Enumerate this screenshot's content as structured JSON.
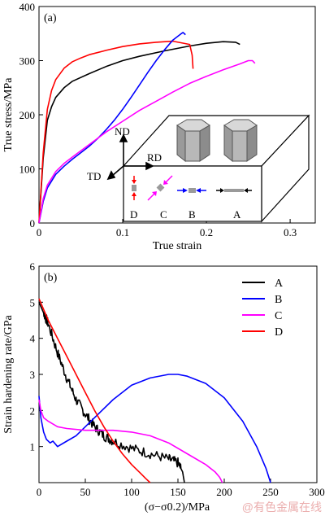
{
  "chart_data": [
    {
      "panel_label": "(a)",
      "type": "line",
      "xlabel": "True strain",
      "ylabel": "True stress/MPa",
      "xlim": [
        0,
        0.33
      ],
      "ylim": [
        0,
        400
      ],
      "xticks": [
        0,
        0.1,
        0.2,
        0.3
      ],
      "xtick_labels": [
        "0",
        "0.1",
        "0.2",
        "0.3"
      ],
      "yticks": [
        0,
        100,
        200,
        300,
        400
      ],
      "ytick_labels": [
        "0",
        "100",
        "200",
        "300",
        "400"
      ],
      "grid": false,
      "legend": "none",
      "series": [
        {
          "color": "#000000",
          "x": [
            0,
            0.005,
            0.01,
            0.015,
            0.02,
            0.03,
            0.04,
            0.06,
            0.08,
            0.1,
            0.12,
            0.15,
            0.18,
            0.2,
            0.22,
            0.235,
            0.24
          ],
          "y": [
            0,
            120,
            190,
            215,
            232,
            250,
            262,
            276,
            289,
            300,
            308,
            318,
            327,
            332,
            335,
            334,
            330
          ]
        },
        {
          "color": "#ff0000",
          "x": [
            0,
            0.005,
            0.01,
            0.015,
            0.02,
            0.03,
            0.04,
            0.05,
            0.06,
            0.08,
            0.1,
            0.12,
            0.14,
            0.16,
            0.17,
            0.18,
            0.183,
            0.184
          ],
          "y": [
            0,
            130,
            210,
            245,
            265,
            286,
            298,
            305,
            311,
            319,
            326,
            331,
            334,
            336,
            333,
            330,
            310,
            285
          ]
        },
        {
          "color": "#0000ff",
          "x": [
            0,
            0.005,
            0.01,
            0.02,
            0.03,
            0.04,
            0.05,
            0.06,
            0.07,
            0.08,
            0.09,
            0.1,
            0.11,
            0.12,
            0.13,
            0.14,
            0.15,
            0.16,
            0.17,
            0.172,
            0.175
          ],
          "y": [
            0,
            40,
            65,
            90,
            105,
            118,
            130,
            142,
            156,
            172,
            190,
            210,
            232,
            255,
            278,
            300,
            320,
            338,
            350,
            352,
            348
          ]
        },
        {
          "color": "#ff00ff",
          "x": [
            0,
            0.005,
            0.01,
            0.02,
            0.03,
            0.04,
            0.06,
            0.08,
            0.1,
            0.12,
            0.14,
            0.16,
            0.18,
            0.2,
            0.22,
            0.24,
            0.25,
            0.255,
            0.258
          ],
          "y": [
            0,
            45,
            70,
            95,
            110,
            122,
            145,
            168,
            188,
            208,
            225,
            242,
            258,
            271,
            283,
            294,
            300,
            300,
            295
          ]
        }
      ],
      "annotations": [
        "ND",
        "RD",
        "TD",
        "D",
        "C",
        "B",
        "A"
      ]
    },
    {
      "panel_label": "(b)",
      "type": "line",
      "xlabel": "(σ−σ0.2)/MPa",
      "ylabel": "Strain hardening rate/GPa",
      "xlim": [
        0,
        300
      ],
      "ylim": [
        0,
        6
      ],
      "xticks": [
        0,
        50,
        100,
        150,
        200,
        250,
        300
      ],
      "xtick_labels": [
        "0",
        "50",
        "100",
        "150",
        "200",
        "250",
        "300"
      ],
      "yticks": [
        1,
        2,
        3,
        4,
        5,
        6
      ],
      "ytick_labels": [
        "1",
        "2",
        "3",
        "4",
        "5",
        "6"
      ],
      "grid": false,
      "legend": "top-right",
      "series": [
        {
          "name": "A",
          "color": "#000000",
          "noisy": true,
          "x": [
            0,
            5,
            10,
            20,
            30,
            40,
            50,
            60,
            70,
            80,
            100,
            120,
            140,
            150,
            155,
            157
          ],
          "y": [
            5.0,
            4.7,
            4.4,
            3.6,
            2.9,
            2.3,
            1.9,
            1.55,
            1.3,
            1.15,
            0.95,
            0.8,
            0.65,
            0.55,
            0.3,
            0.0
          ]
        },
        {
          "name": "B",
          "color": "#0000ff",
          "noisy": false,
          "x": [
            0,
            2,
            5,
            8,
            12,
            15,
            20,
            30,
            40,
            60,
            80,
            100,
            120,
            140,
            150,
            160,
            180,
            200,
            220,
            235,
            245,
            250
          ],
          "y": [
            2.4,
            1.8,
            1.4,
            1.2,
            1.1,
            1.15,
            1.0,
            1.15,
            1.3,
            1.8,
            2.3,
            2.7,
            2.9,
            3.0,
            3.0,
            2.95,
            2.75,
            2.35,
            1.7,
            1.0,
            0.4,
            0.0
          ]
        },
        {
          "name": "C",
          "color": "#ff00ff",
          "noisy": false,
          "x": [
            0,
            2,
            5,
            10,
            20,
            30,
            50,
            80,
            100,
            120,
            140,
            160,
            180,
            190,
            195,
            198
          ],
          "y": [
            2.3,
            2.0,
            1.8,
            1.7,
            1.55,
            1.5,
            1.45,
            1.45,
            1.4,
            1.3,
            1.1,
            0.8,
            0.5,
            0.3,
            0.15,
            0.0
          ]
        },
        {
          "name": "D",
          "color": "#ff0000",
          "noisy": false,
          "x": [
            0,
            5,
            10,
            20,
            30,
            40,
            50,
            60,
            70,
            80,
            90,
            100,
            110,
            115,
            120
          ],
          "y": [
            5.1,
            4.8,
            4.5,
            4.0,
            3.5,
            3.0,
            2.5,
            2.0,
            1.55,
            1.15,
            0.8,
            0.5,
            0.25,
            0.12,
            0.0
          ]
        }
      ]
    }
  ],
  "watermark": "@有色金属在线"
}
